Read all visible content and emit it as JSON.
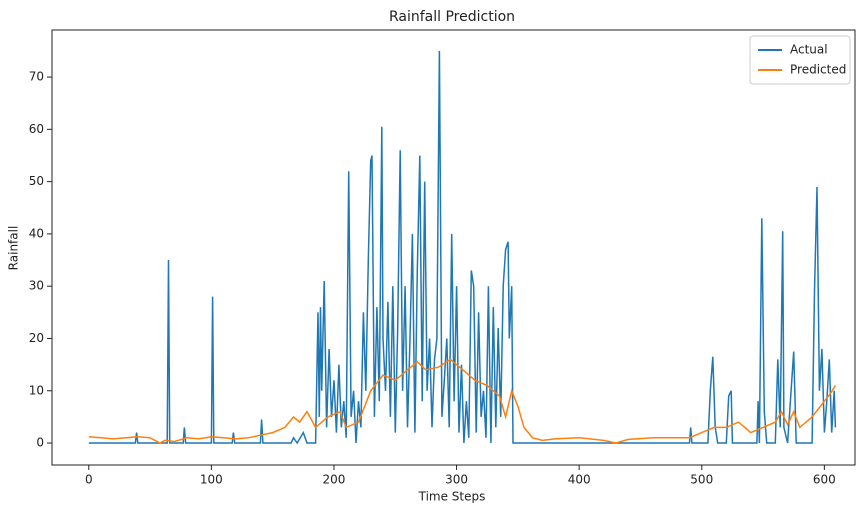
{
  "chart_data": {
    "type": "line",
    "title": "Rainfall Prediction",
    "x_label": "Time Steps",
    "y_label": "Rainfall",
    "xlim": [
      -30,
      625
    ],
    "ylim": [
      -4.2,
      79
    ],
    "xticks": [
      0,
      100,
      200,
      300,
      400,
      500,
      600
    ],
    "yticks": [
      0,
      10,
      20,
      30,
      40,
      50,
      60,
      70
    ],
    "legend": "upper-right",
    "series": [
      {
        "name": "Actual",
        "color": "#1f77b4",
        "x": [
          0,
          38,
          39,
          40,
          64,
          65,
          66,
          77,
          78,
          79,
          100,
          101,
          102,
          117,
          118,
          119,
          140,
          141,
          142,
          165,
          167,
          170,
          175,
          178,
          185,
          187,
          188,
          189,
          190,
          192,
          194,
          196,
          198,
          200,
          202,
          204,
          206,
          208,
          210,
          212,
          214,
          216,
          218,
          220,
          222,
          224,
          226,
          228,
          230,
          231,
          233,
          235,
          237,
          239,
          240,
          242,
          244,
          246,
          248,
          250,
          252,
          254,
          256,
          258,
          260,
          262,
          264,
          266,
          268,
          270,
          272,
          274,
          276,
          278,
          280,
          282,
          284,
          286,
          288,
          290,
          292,
          294,
          296,
          298,
          300,
          302,
          304,
          306,
          308,
          310,
          312,
          314,
          316,
          318,
          320,
          322,
          324,
          326,
          328,
          330,
          332,
          334,
          336,
          338,
          340,
          342,
          343,
          345,
          346,
          490,
          491,
          492,
          505,
          507,
          509,
          511,
          513,
          520,
          522,
          524,
          525,
          545,
          546,
          547,
          549,
          551,
          553,
          560,
          562,
          564,
          566,
          567,
          570,
          575,
          577,
          590,
          592,
          594,
          596,
          598,
          600,
          602,
          604,
          606,
          608,
          609
        ],
        "values": [
          0,
          0,
          2,
          0,
          0,
          35,
          0,
          0,
          3,
          0,
          0,
          28,
          0,
          0,
          2,
          0,
          0,
          4.5,
          0,
          0,
          1,
          0,
          2,
          0,
          0,
          25,
          5,
          26,
          10,
          31,
          3,
          18,
          5,
          12,
          2,
          15,
          3,
          8,
          1,
          52,
          5,
          10,
          0,
          8,
          3,
          25,
          10,
          35,
          54,
          55,
          5,
          26,
          8,
          60.5,
          20,
          10,
          27,
          5,
          30,
          2,
          22,
          56,
          10,
          30,
          3,
          20,
          40,
          2,
          33,
          55,
          8,
          50,
          10,
          20,
          3,
          16,
          20,
          75,
          5,
          12,
          20,
          3,
          40,
          8,
          30,
          2,
          15,
          0,
          8,
          1,
          33,
          30,
          2,
          25,
          5,
          10,
          1,
          30,
          0,
          26,
          3,
          22,
          5,
          30,
          37,
          38.5,
          20,
          30,
          0,
          0,
          3,
          0,
          0,
          10,
          16.5,
          3,
          0,
          0,
          9,
          10,
          0,
          0,
          8,
          0,
          43,
          6,
          0,
          0,
          16,
          3,
          40.5,
          3,
          0,
          17.5,
          0,
          0,
          29,
          49,
          10,
          18,
          2,
          8,
          16,
          2,
          10,
          3
        ]
      },
      {
        "name": "Predicted",
        "color": "#ff7f0e",
        "x": [
          0,
          10,
          20,
          30,
          40,
          50,
          58,
          62,
          70,
          80,
          90,
          100,
          110,
          120,
          130,
          140,
          150,
          160,
          167,
          172,
          178,
          185,
          195,
          205,
          210,
          220,
          230,
          240,
          250,
          260,
          268,
          275,
          285,
          295,
          305,
          315,
          325,
          335,
          340,
          345,
          350,
          355,
          362,
          370,
          380,
          400,
          420,
          430,
          440,
          460,
          480,
          490,
          500,
          510,
          520,
          530,
          540,
          550,
          560,
          565,
          570,
          575,
          580,
          590,
          600,
          605,
          609
        ],
        "values": [
          1.2,
          1,
          0.8,
          1,
          1.2,
          1,
          0,
          0.5,
          0.3,
          1,
          0.8,
          1.2,
          1,
          0.8,
          1,
          1.5,
          2,
          3,
          5,
          4,
          6,
          3,
          5,
          6,
          3,
          4,
          10,
          13,
          12,
          14,
          15.5,
          14,
          14.5,
          16,
          14,
          12,
          11,
          9,
          5,
          10,
          7,
          3,
          1,
          0.5,
          0.8,
          1,
          0.5,
          0,
          0.7,
          1,
          1,
          1,
          2,
          3,
          3,
          4,
          2,
          3,
          4,
          6,
          3.5,
          6,
          3,
          5,
          8,
          9.5,
          11
        ]
      }
    ]
  }
}
